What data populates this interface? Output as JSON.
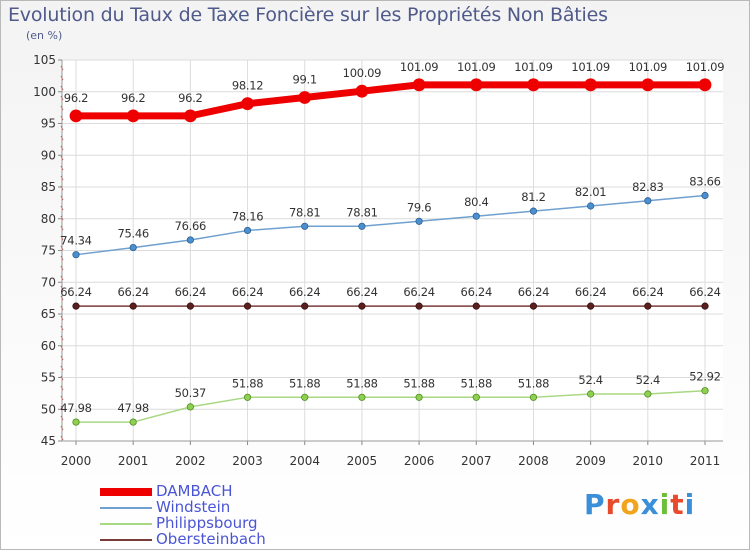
{
  "header": {
    "title": "Evolution du Taux de Taxe Foncière sur les Propriétés Non Bâties",
    "subtitle": "(en %)"
  },
  "brand": {
    "logo_letters": [
      "P",
      "r",
      "o",
      "x",
      "i",
      "t",
      "i"
    ],
    "logo_colors": [
      "#3a8fd8",
      "#e84b2c",
      "#f2a41c",
      "#3a8fd8",
      "#6cbf3a",
      "#e84b2c",
      "#3a8fd8"
    ]
  },
  "chart_data": {
    "type": "line",
    "title": "Evolution du Taux de Taxe Foncière sur les Propriétés Non Bâties",
    "ylabel": "(en %)",
    "xlabel": "",
    "ylim": [
      45,
      105
    ],
    "yticks": [
      45,
      50,
      55,
      60,
      65,
      70,
      75,
      80,
      85,
      90,
      95,
      100,
      105
    ],
    "grid": true,
    "categories": [
      "2000",
      "2001",
      "2002",
      "2003",
      "2004",
      "2005",
      "2006",
      "2007",
      "2008",
      "2009",
      "2010",
      "2011"
    ],
    "series": [
      {
        "name": "DAMBACH",
        "color": "#ee0000",
        "values": [
          96.2,
          96.2,
          96.2,
          98.12,
          99.1,
          100.09,
          101.09,
          101.09,
          101.09,
          101.09,
          101.09,
          101.09
        ],
        "labels": [
          "96.2",
          "96.2",
          "96.2",
          "98.12",
          "99.1",
          "100.09",
          "101.09",
          "101.09",
          "101.09",
          "101.09",
          "101.09",
          "101.09"
        ]
      },
      {
        "name": "Windstein",
        "color": "#6fa0cf",
        "values": [
          74.34,
          75.46,
          76.66,
          78.16,
          78.81,
          78.81,
          79.6,
          80.4,
          81.2,
          82.01,
          82.83,
          83.66
        ],
        "labels": [
          "74.34",
          "75.46",
          "76.66",
          "78.16",
          "78.81",
          "78.81",
          "79.6",
          "80.4",
          "81.2",
          "82.01",
          "82.83",
          "83.66"
        ]
      },
      {
        "name": "Philippsbourg",
        "color": "#a8d882",
        "values": [
          47.98,
          47.98,
          50.37,
          51.88,
          51.88,
          51.88,
          51.88,
          51.88,
          51.88,
          52.4,
          52.4,
          52.92
        ],
        "labels": [
          "47.98",
          "47.98",
          "50.37",
          "51.88",
          "51.88",
          "51.88",
          "51.88",
          "51.88",
          "51.88",
          "52.4",
          "52.4",
          "52.92"
        ]
      },
      {
        "name": "Obersteinbach",
        "color": "#7a3b3b",
        "values": [
          66.24,
          66.24,
          66.24,
          66.24,
          66.24,
          66.24,
          66.24,
          66.24,
          66.24,
          66.24,
          66.24,
          66.24
        ],
        "labels": [
          "66.24",
          "66.24",
          "66.24",
          "66.24",
          "66.24",
          "66.24",
          "66.24",
          "66.24",
          "66.24",
          "66.24",
          "66.24",
          "66.24"
        ]
      }
    ],
    "legend_position": "bottom-left"
  }
}
